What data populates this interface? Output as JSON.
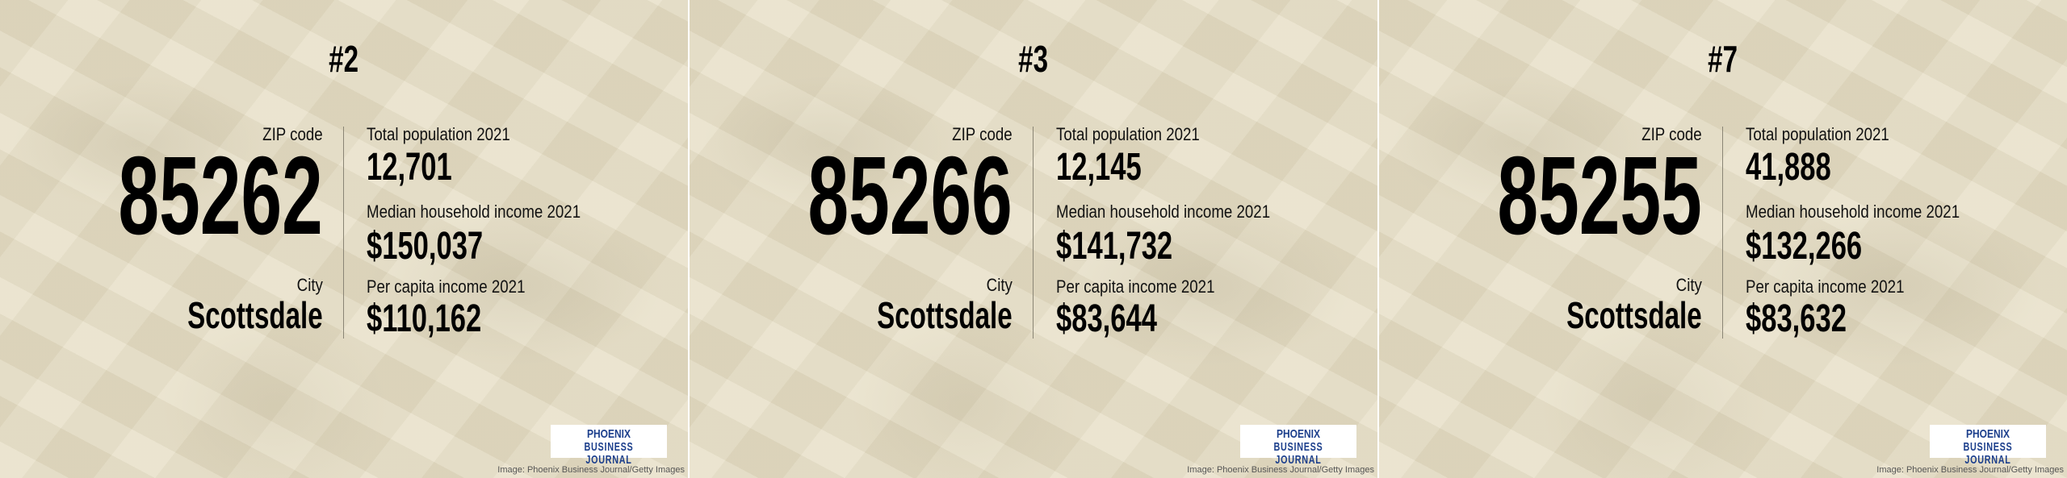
{
  "labels": {
    "zip": "ZIP code",
    "city": "City",
    "population": "Total population 2021",
    "median_income": "Median household income 2021",
    "per_capita": "Per capita income 2021"
  },
  "logo": {
    "line1": "PHOENIX",
    "line2": "BUSINESS JOURNAL",
    "brand_color": "#1c3f8c"
  },
  "credit": "Image: Phoenix Business Journal/Getty Images",
  "background_color": "#e7dfc7",
  "panels": [
    {
      "rank": "#2",
      "zip": "85262",
      "city": "Scottsdale",
      "population": "12,701",
      "median_income": "$150,037",
      "per_capita": "$110,162"
    },
    {
      "rank": "#3",
      "zip": "85266",
      "city": "Scottsdale",
      "population": "12,145",
      "median_income": "$141,732",
      "per_capita": "$83,644"
    },
    {
      "rank": "#7",
      "zip": "85255",
      "city": "Scottsdale",
      "population": "41,888",
      "median_income": "$132,266",
      "per_capita": "$83,632"
    }
  ]
}
